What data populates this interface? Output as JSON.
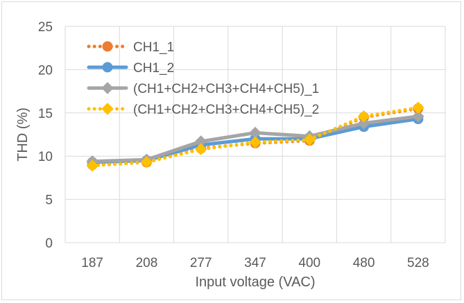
{
  "chart_data": {
    "type": "line",
    "title": "",
    "xlabel": "Input voltage (VAC)",
    "ylabel": "THD (%)",
    "categories": [
      "187",
      "208",
      "277",
      "347",
      "400",
      "480",
      "528"
    ],
    "ylim": [
      0,
      25
    ],
    "yticks": [
      "0",
      "5",
      "10",
      "15",
      "20",
      "25"
    ],
    "grid": "vertical and horizontal",
    "legend_position": "top-left",
    "series": [
      {
        "name": "CH1_1",
        "values": [
          9.0,
          9.3,
          10.9,
          11.5,
          11.8,
          14.5,
          15.5
        ],
        "color": "#ED7D31",
        "marker": "circle",
        "line": "dotted"
      },
      {
        "name": "CH1_2",
        "values": [
          9.3,
          9.5,
          11.3,
          12.0,
          12.0,
          13.4,
          14.3
        ],
        "color": "#5B9BD5",
        "marker": "circle",
        "line": "solid"
      },
      {
        "name": "(CH1+CH2+CH3+CH4+CH5)_1",
        "values": [
          9.4,
          9.6,
          11.7,
          12.7,
          12.3,
          13.8,
          14.6
        ],
        "color": "#A5A5A5",
        "marker": "diamond",
        "line": "solid"
      },
      {
        "name": "(CH1+CH2+CH3+CH4+CH5)_2",
        "values": [
          8.9,
          9.3,
          10.8,
          11.6,
          11.9,
          14.6,
          15.6
        ],
        "color": "#FFC000",
        "marker": "diamond",
        "line": "dotted"
      }
    ]
  }
}
